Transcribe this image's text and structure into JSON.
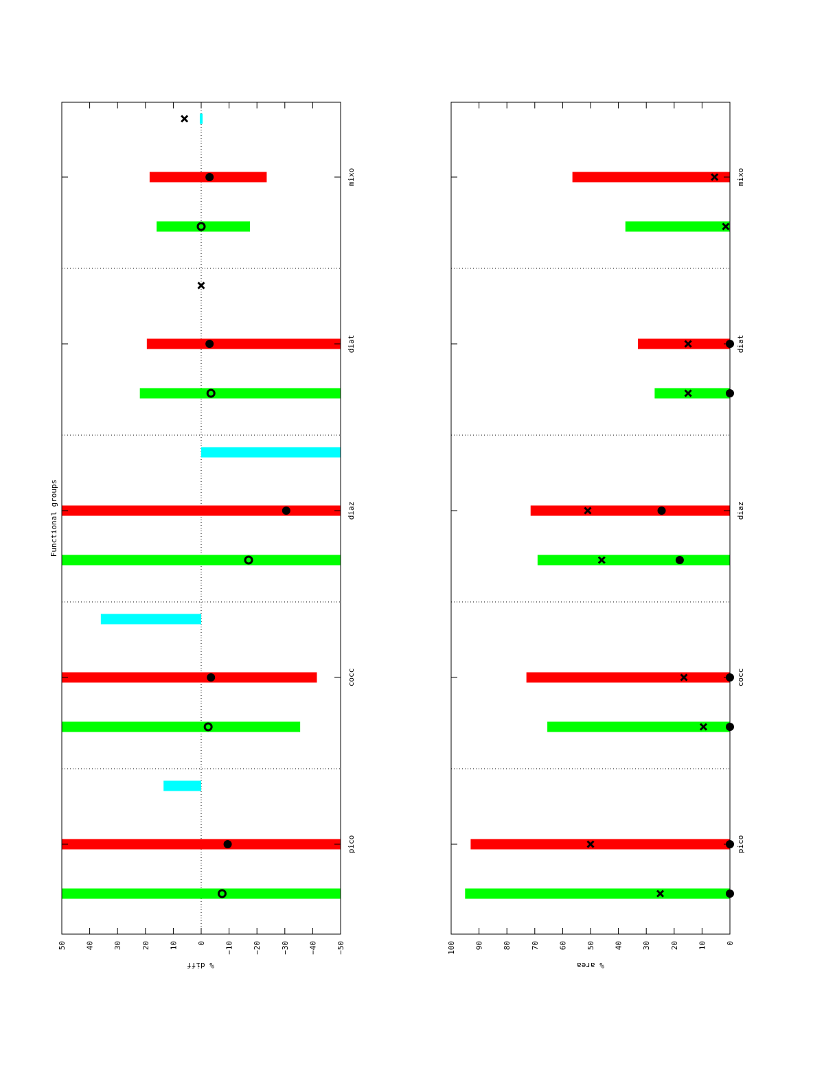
{
  "chart_data": [
    {
      "type": "bar",
      "orientation": "rotated-90",
      "title": "Functional groups",
      "ylabel": "% diff",
      "ylim": [
        -50,
        50
      ],
      "yticks": [
        50,
        40,
        30,
        20,
        10,
        0,
        -10,
        -20,
        -30,
        -40,
        -50
      ],
      "categories": [
        "pico",
        "cocc",
        "diaz",
        "diat",
        "mixo"
      ],
      "zero_line": true,
      "bars": [
        {
          "category": "pico",
          "color": "green",
          "from": -50,
          "to": 50,
          "marker": "open-circle",
          "marker_value": -7.5
        },
        {
          "category": "pico",
          "color": "red",
          "from": -50,
          "to": 50,
          "marker": "filled-circle",
          "marker_value": -9.5
        },
        {
          "category": "pico",
          "color": "cyan",
          "from": 0,
          "to": 13.5
        },
        {
          "category": "cocc",
          "color": "green",
          "from": -35.5,
          "to": 50,
          "marker": "open-circle",
          "marker_value": -2.5
        },
        {
          "category": "cocc",
          "color": "red",
          "from": -41.5,
          "to": 50,
          "marker": "filled-circle",
          "marker_value": -3.5
        },
        {
          "category": "cocc",
          "color": "cyan",
          "from": 0,
          "to": 36
        },
        {
          "category": "diaz",
          "color": "green",
          "from": -50,
          "to": 50,
          "marker": "open-circle",
          "marker_value": -17
        },
        {
          "category": "diaz",
          "color": "red",
          "from": -50,
          "to": 50,
          "marker": "filled-circle",
          "marker_value": -30.5
        },
        {
          "category": "diaz",
          "color": "cyan",
          "from": -50,
          "to": 0
        },
        {
          "category": "diat",
          "color": "green",
          "from": -50,
          "to": 22,
          "marker": "open-circle",
          "marker_value": -3.5
        },
        {
          "category": "diat",
          "color": "red",
          "from": -50,
          "to": 19.5,
          "marker": "filled-circle",
          "marker_value": -3
        },
        {
          "category": "diat",
          "color": "cyan",
          "marker": "x",
          "marker_value": 0
        },
        {
          "category": "mixo",
          "color": "green",
          "from": -17.5,
          "to": 16,
          "marker": "open-circle",
          "marker_value": 0
        },
        {
          "category": "mixo",
          "color": "red",
          "from": -23.5,
          "to": 18.5,
          "marker": "filled-circle",
          "marker_value": -3
        },
        {
          "category": "mixo",
          "color": "cyan",
          "from": -0.5,
          "to": 0.5,
          "marker": "x",
          "marker_value": 6
        }
      ]
    },
    {
      "type": "bar",
      "orientation": "rotated-90",
      "ylabel": "% area",
      "ylim": [
        0,
        100
      ],
      "yticks": [
        100,
        90,
        80,
        70,
        60,
        50,
        40,
        30,
        20,
        10,
        0
      ],
      "categories": [
        "pico",
        "cocc",
        "diaz",
        "diat",
        "mixo"
      ],
      "bars": [
        {
          "category": "pico",
          "color": "green",
          "from": 0,
          "to": 95,
          "x_marker": 25,
          "dot_marker": 0
        },
        {
          "category": "pico",
          "color": "red",
          "from": 0,
          "to": 93,
          "x_marker": 50,
          "dot_marker": 0
        },
        {
          "category": "cocc",
          "color": "green",
          "from": 0,
          "to": 65.5,
          "x_marker": 9.5,
          "dot_marker": 0
        },
        {
          "category": "cocc",
          "color": "red",
          "from": 0,
          "to": 73,
          "x_marker": 16.5,
          "dot_marker": 0
        },
        {
          "category": "diaz",
          "color": "green",
          "from": 0,
          "to": 69,
          "x_marker": 46,
          "dot_marker": 18
        },
        {
          "category": "diaz",
          "color": "red",
          "from": 0,
          "to": 71.5,
          "x_marker": 51,
          "dot_marker": 24.5
        },
        {
          "category": "diat",
          "color": "green",
          "from": 0,
          "to": 27,
          "x_marker": 15,
          "dot_marker": 0
        },
        {
          "category": "diat",
          "color": "red",
          "from": 0,
          "to": 33,
          "x_marker": 15,
          "dot_marker": 0
        },
        {
          "category": "mixo",
          "color": "green",
          "from": 0,
          "to": 37.5,
          "x_marker": 1.5
        },
        {
          "category": "mixo",
          "color": "red",
          "from": 0,
          "to": 56.5,
          "x_marker": 5.5
        }
      ]
    }
  ],
  "colors": {
    "green": "#00ff00",
    "red": "#ff0000",
    "cyan": "#00ffff",
    "axis": "#000000"
  }
}
